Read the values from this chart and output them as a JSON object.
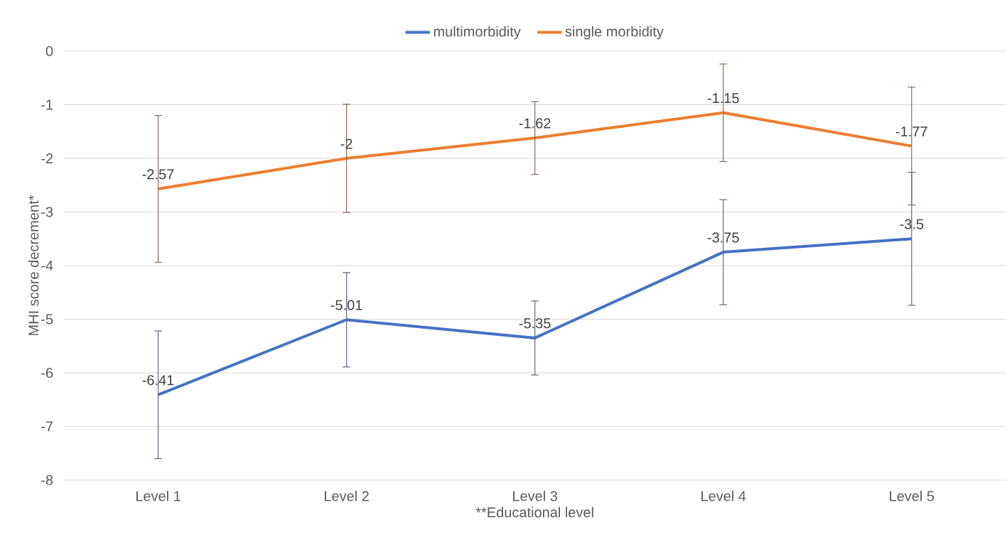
{
  "chart_data": {
    "type": "line",
    "xlabel": "**Educational level",
    "ylabel": "MHI score decrement*",
    "categories": [
      "Level 1",
      "Level 2",
      "Level 3",
      "Level 4",
      "Level 5"
    ],
    "series": [
      {
        "name": "multimorbidity",
        "color": "#4472c4",
        "values": [
          -6.41,
          -5.01,
          -5.35,
          -3.75,
          -3.5
        ],
        "errors": [
          1.19,
          0.88,
          0.69,
          0.98,
          1.24
        ]
      },
      {
        "name": "single morbidity",
        "color": "#ed7d31",
        "values": [
          -2.57,
          -2,
          -1.62,
          -1.15,
          -1.77
        ],
        "errors": [
          1.37,
          1.01,
          0.68,
          0.91,
          1.1
        ]
      }
    ],
    "ylim": [
      -8,
      0
    ],
    "yticks": [
      -8,
      -7,
      -6,
      -5,
      -4,
      -3,
      -2,
      -1,
      0
    ],
    "grid": "y",
    "legend": "top",
    "data_labels": true,
    "marker": "none",
    "line_style": "solid"
  }
}
